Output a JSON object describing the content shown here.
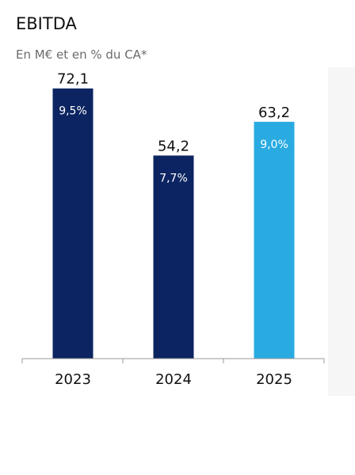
{
  "chart_data": {
    "type": "bar",
    "title": "EBITDA",
    "subtitle": "En M€ et en % du CA*",
    "categories": [
      "2023",
      "2024",
      "2025"
    ],
    "values": [
      72.1,
      54.2,
      63.2
    ],
    "value_labels": [
      "72,1",
      "54,2",
      "63,2"
    ],
    "margin_labels": [
      "9,5%",
      "7,7%",
      "9,0%"
    ],
    "bar_colors": [
      "#0c2461",
      "#0c2461",
      "#29abe2"
    ],
    "ylim": [
      0,
      75
    ],
    "grid": false,
    "legend": false
  }
}
